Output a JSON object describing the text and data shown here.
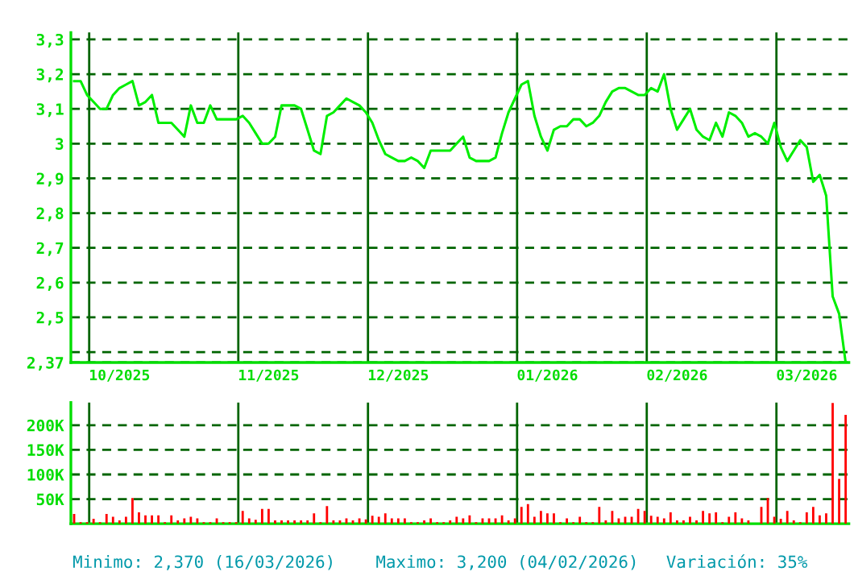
{
  "chart_data": [
    {
      "type": "line",
      "categories": [
        null,
        null,
        null,
        null,
        null,
        null,
        null,
        "10/2025",
        null,
        null,
        null,
        null,
        null,
        null,
        null,
        null,
        null,
        null,
        null,
        null,
        null,
        null,
        null,
        null,
        null,
        null,
        null,
        null,
        null,
        null,
        "11/2025",
        null,
        null,
        null,
        null,
        null,
        null,
        null,
        null,
        null,
        null,
        null,
        null,
        null,
        null,
        null,
        null,
        null,
        null,
        null,
        "12/2025",
        null,
        null,
        null,
        null,
        null,
        null,
        null,
        null,
        null,
        null,
        null,
        null,
        null,
        null,
        null,
        null,
        null,
        null,
        null,
        null,
        null,
        null,
        "01/2026",
        null,
        null,
        null,
        null,
        null,
        null,
        null,
        null,
        null,
        null,
        null,
        null,
        null,
        null,
        null,
        null,
        null,
        null,
        null,
        "02/2026",
        null,
        null,
        null,
        null,
        null,
        null,
        null,
        null,
        null,
        null,
        null,
        null,
        null,
        null,
        null,
        null,
        null,
        null,
        null,
        "03/2026",
        null,
        null,
        null,
        null,
        null,
        null
      ],
      "series": [
        {
          "color": "#00ee00",
          "values": [
            3.18,
            3.18,
            3.14,
            3.12,
            3.1,
            3.1,
            3.14,
            3.16,
            3.17,
            3.18,
            3.11,
            3.12,
            3.14,
            3.06,
            3.06,
            3.06,
            3.04,
            3.02,
            3.11,
            3.06,
            3.06,
            3.11,
            3.07,
            3.07,
            3.07,
            3.07,
            3.08,
            3.06,
            3.03,
            3.0,
            3.0,
            3.02,
            3.11,
            3.11,
            3.11,
            3.1,
            3.04,
            2.98,
            2.97,
            3.08,
            3.09,
            3.11,
            3.13,
            3.12,
            3.11,
            3.09,
            3.06,
            3.01,
            2.97,
            2.96,
            2.95,
            2.95,
            2.96,
            2.95,
            2.93,
            2.98,
            2.98,
            2.98,
            2.98,
            3.0,
            3.02,
            2.96,
            2.95,
            2.95,
            2.95,
            2.96,
            3.03,
            3.09,
            3.13,
            3.17,
            3.18,
            3.08,
            3.02,
            2.98,
            3.04,
            3.05,
            3.05,
            3.07,
            3.07,
            3.05,
            3.06,
            3.08,
            3.12,
            3.15,
            3.16,
            3.16,
            3.15,
            3.14,
            3.14,
            3.16,
            3.15,
            3.2,
            3.1,
            3.04,
            3.07,
            3.1,
            3.04,
            3.02,
            3.01,
            3.06,
            3.02,
            3.09,
            3.08,
            3.06,
            3.02,
            3.03,
            3.02,
            3.0,
            3.06,
            2.99,
            2.95,
            2.98,
            3.01,
            2.99,
            2.89,
            2.91,
            2.85,
            2.56,
            2.51,
            2.37
          ]
        }
      ],
      "ylim": [
        2.37,
        3.32
      ],
      "yticks": [
        {
          "value": 2.37,
          "label": "2,37"
        },
        {
          "value": 2.4,
          "label": null
        },
        {
          "value": 2.5,
          "label": "2,5"
        },
        {
          "value": 2.6,
          "label": "2,6"
        },
        {
          "value": 2.7,
          "label": "2,7"
        },
        {
          "value": 2.8,
          "label": "2,8"
        },
        {
          "value": 2.9,
          "label": "2,9"
        },
        3,
        {
          "value": 3.1,
          "label": "3,1"
        },
        {
          "value": 3.2,
          "label": "3,2"
        },
        {
          "value": 3.3,
          "label": "3,3"
        }
      ],
      "grid": true
    },
    {
      "type": "bar",
      "categories": [
        null,
        null,
        null,
        null,
        null,
        null,
        null,
        null,
        null,
        null,
        null,
        null,
        null,
        null,
        null,
        null,
        null,
        null,
        null,
        null,
        null,
        null,
        null,
        null,
        null,
        null,
        null,
        null,
        null,
        null,
        null,
        null,
        null,
        null,
        null,
        null,
        null,
        null,
        null,
        null,
        null,
        null,
        null,
        null,
        null,
        null,
        null,
        null,
        null,
        null,
        null,
        null,
        null,
        null,
        null,
        null,
        null,
        null,
        null,
        null,
        null,
        null,
        null,
        null,
        null,
        null,
        null,
        null,
        null,
        null,
        null,
        null,
        null,
        null,
        null,
        null,
        null,
        null,
        null,
        null,
        null,
        null,
        null,
        null,
        null,
        null,
        null,
        null,
        null,
        null,
        null,
        null,
        null,
        null,
        null,
        null,
        null,
        null,
        null,
        null,
        null,
        null,
        null,
        null,
        null,
        null,
        null,
        null,
        null,
        null,
        null,
        null,
        null,
        null,
        null,
        null,
        null,
        null,
        null,
        null
      ],
      "series": [
        {
          "color": "#ff0000",
          "values": [
            20000,
            3000,
            3000,
            10000,
            3000,
            20000,
            14000,
            7000,
            14000,
            52000,
            23000,
            17000,
            17000,
            17000,
            3000,
            17000,
            7000,
            11000,
            14000,
            11000,
            3000,
            3000,
            11000,
            3000,
            3000,
            3000,
            26000,
            11000,
            8000,
            30000,
            30000,
            7000,
            7000,
            7000,
            7000,
            7000,
            7000,
            21000,
            3000,
            36000,
            7000,
            7000,
            11000,
            7000,
            11000,
            9000,
            16000,
            14000,
            21000,
            11000,
            11000,
            11000,
            3000,
            3000,
            7000,
            11000,
            3000,
            3000,
            7000,
            14000,
            11000,
            17000,
            3000,
            11000,
            11000,
            11000,
            17000,
            7000,
            11000,
            34000,
            40000,
            14000,
            26000,
            21000,
            21000,
            3000,
            11000,
            3000,
            14000,
            3000,
            3000,
            34000,
            7000,
            26000,
            11000,
            14000,
            14000,
            30000,
            26000,
            16000,
            14000,
            11000,
            23000,
            7000,
            7000,
            14000,
            7000,
            26000,
            21000,
            23000,
            3000,
            14000,
            23000,
            11000,
            7000,
            null,
            34000,
            52000,
            14000,
            10000,
            26000,
            7000,
            3000,
            23000,
            34000,
            17000,
            21000,
            245000,
            91000,
            221000
          ]
        }
      ],
      "ylim": [
        0,
        246000
      ],
      "yticks": [
        {
          "value": 50000,
          "label": "50K"
        },
        {
          "value": 100000,
          "label": "100K"
        },
        {
          "value": 150000,
          "label": "150K"
        },
        {
          "value": 200000,
          "label": "200K"
        }
      ],
      "grid": true,
      "annotations": [
        "Minimo: 2,370 (16/03/2026)",
        "Maximo: 3,200 (04/02/2026)",
        "Variación: 35%"
      ]
    }
  ]
}
